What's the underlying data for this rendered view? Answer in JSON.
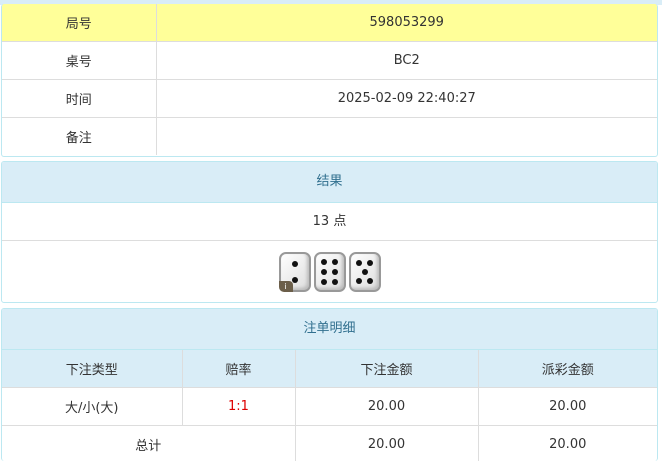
{
  "info": {
    "rows": [
      {
        "label": "局号",
        "value": "598053299"
      },
      {
        "label": "桌号",
        "value": "BC2"
      },
      {
        "label": "时间",
        "value": "2025-02-09 22:40:27"
      },
      {
        "label": "备注",
        "value": ""
      }
    ]
  },
  "result": {
    "title": "结果",
    "points": "13 点",
    "dice": [
      2,
      6,
      5
    ],
    "badge": "i"
  },
  "bets": {
    "title": "注单明细",
    "headers": [
      "下注类型",
      "赔率",
      "下注金额",
      "派彩金额"
    ],
    "rows": [
      {
        "type": "大/小(大)",
        "odds": "1:1",
        "amount": "20.00",
        "payout": "20.00"
      }
    ],
    "total": {
      "label": "总计",
      "amount": "20.00",
      "payout": "20.00"
    }
  },
  "colors": {
    "highlight": "#ffff99",
    "header": "#d9edf7",
    "odds": "#dd0000"
  }
}
